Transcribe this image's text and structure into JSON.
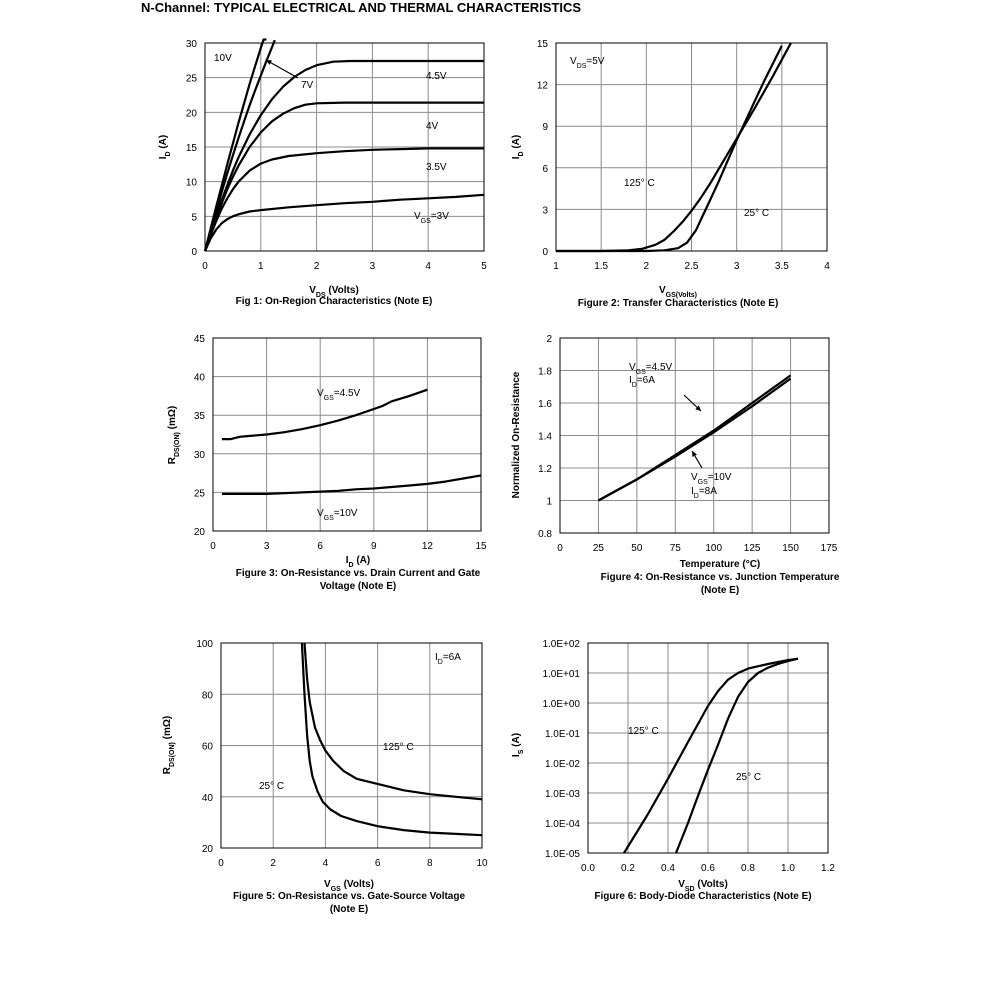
{
  "page_title": "N-Channel: TYPICAL ELECTRICAL AND THERMAL CHARACTERISTICS",
  "chart_data": [
    {
      "type": "line",
      "caption": "Fig 1: On-Region Characteristics (Note E)",
      "xlabel": "V_DS (Volts)",
      "ylabel": "I_D (A)",
      "xlim": [
        0,
        5
      ],
      "ylim": [
        0,
        30
      ],
      "xticks": [
        "0",
        "1",
        "2",
        "3",
        "4",
        "5"
      ],
      "yticks": [
        "0",
        "5",
        "10",
        "15",
        "20",
        "25",
        "30"
      ],
      "grid": true,
      "series": [
        {
          "name": "10V",
          "x": [
            0,
            0.1,
            0.2,
            0.3,
            0.4,
            0.5,
            0.6,
            0.7,
            0.8,
            0.9,
            1.0,
            1.05,
            1.1
          ],
          "y": [
            0,
            3.2,
            6.4,
            9.4,
            12.5,
            15.5,
            18.5,
            21.3,
            24.1,
            26.7,
            29.3,
            30.5,
            30.5
          ]
        },
        {
          "name": "7V",
          "x": [
            0,
            0.1,
            0.2,
            0.3,
            0.4,
            0.5,
            0.6,
            0.7,
            0.8,
            0.9,
            1.0,
            1.1,
            1.2,
            1.25
          ],
          "y": [
            0,
            2.9,
            5.7,
            8.5,
            11.2,
            13.8,
            16.3,
            18.7,
            21,
            23.2,
            25.3,
            27.4,
            29.4,
            30.4
          ]
        },
        {
          "name": "4.5V",
          "x": [
            0,
            0.1,
            0.2,
            0.3,
            0.4,
            0.5,
            0.6,
            0.8,
            1.0,
            1.2,
            1.4,
            1.6,
            1.8,
            2.0,
            2.3,
            2.6,
            3,
            3.5,
            4,
            4.5,
            5
          ],
          "y": [
            0,
            2.5,
            5,
            7.3,
            9.5,
            11.6,
            13.5,
            16.8,
            19.6,
            21.9,
            23.7,
            25.1,
            26.1,
            26.8,
            27.3,
            27.4,
            27.4,
            27.4,
            27.4,
            27.4,
            27.4
          ]
        },
        {
          "name": "4V",
          "x": [
            0,
            0.1,
            0.2,
            0.3,
            0.4,
            0.5,
            0.6,
            0.8,
            1.0,
            1.2,
            1.4,
            1.6,
            1.8,
            2.0,
            2.5,
            3,
            3.5,
            4,
            4.5,
            5
          ],
          "y": [
            0,
            2.4,
            4.7,
            6.9,
            8.9,
            10.7,
            12.3,
            15,
            17.1,
            18.7,
            19.8,
            20.6,
            21.1,
            21.3,
            21.4,
            21.4,
            21.4,
            21.4,
            21.4,
            21.4
          ]
        },
        {
          "name": "3.5V",
          "x": [
            0,
            0.1,
            0.2,
            0.3,
            0.4,
            0.5,
            0.6,
            0.8,
            1.0,
            1.2,
            1.5,
            2.0,
            2.5,
            3,
            3.5,
            4,
            4.5,
            5
          ],
          "y": [
            0,
            2.3,
            4.3,
            6.1,
            7.6,
            8.9,
            10,
            11.6,
            12.6,
            13.2,
            13.7,
            14.1,
            14.4,
            14.6,
            14.7,
            14.8,
            14.8,
            14.8
          ]
        },
        {
          "name": "VGS=3V",
          "x": [
            0,
            0.1,
            0.2,
            0.3,
            0.4,
            0.5,
            0.6,
            0.8,
            1.0,
            1.5,
            2.0,
            2.5,
            3,
            3.5,
            4,
            4.5,
            5
          ],
          "y": [
            0,
            1.8,
            3.1,
            4,
            4.6,
            5,
            5.3,
            5.7,
            5.9,
            6.3,
            6.6,
            6.9,
            7.1,
            7.4,
            7.6,
            7.8,
            8.1
          ]
        }
      ],
      "labels": [
        "10V",
        "7V",
        "4.5V",
        "4V",
        "3.5V",
        "V_GS=3V"
      ]
    },
    {
      "type": "line",
      "caption": "Figure 2: Transfer Characteristics (Note E)",
      "xlabel": "V_GS(Volts)",
      "ylabel": "I_D (A)",
      "xlim": [
        1,
        4
      ],
      "ylim": [
        0,
        15
      ],
      "xticks": [
        "1",
        "1.5",
        "2",
        "2.5",
        "3",
        "3.5",
        "4"
      ],
      "yticks": [
        "0",
        "3",
        "6",
        "9",
        "12",
        "15"
      ],
      "grid": true,
      "annotation": "V_DS=5V",
      "series": [
        {
          "name": "125° C",
          "x": [
            1,
            1.5,
            1.8,
            1.95,
            2.1,
            2.2,
            2.3,
            2.4,
            2.5,
            2.6,
            2.7,
            2.8,
            2.9,
            3.0,
            3.2,
            3.4,
            3.6
          ],
          "y": [
            0,
            0,
            0.05,
            0.15,
            0.45,
            0.8,
            1.4,
            2.1,
            2.9,
            3.8,
            4.8,
            5.9,
            7.0,
            8.1,
            10.3,
            12.6,
            15
          ]
        },
        {
          "name": "25° C",
          "x": [
            1,
            1.5,
            2.0,
            2.2,
            2.35,
            2.45,
            2.55,
            2.6,
            2.7,
            2.8,
            2.9,
            3.0,
            3.1,
            3.2,
            3.3,
            3.4,
            3.5
          ],
          "y": [
            0,
            0,
            0,
            0.05,
            0.2,
            0.6,
            1.5,
            2.2,
            3.6,
            5.0,
            6.5,
            8.0,
            9.4,
            10.8,
            12.2,
            13.5,
            14.8
          ]
        }
      ]
    },
    {
      "type": "line",
      "caption": "Figure 3: On-Resistance vs. Drain Current and Gate Voltage (Note E)",
      "xlabel": "I_D (A)",
      "ylabel": "R_DS(ON) (mΩ)",
      "xlim": [
        0,
        15
      ],
      "ylim": [
        20,
        45
      ],
      "xticks": [
        "0",
        "3",
        "6",
        "9",
        "12",
        "15"
      ],
      "yticks": [
        "20",
        "25",
        "30",
        "35",
        "40",
        "45"
      ],
      "grid": true,
      "series": [
        {
          "name": "V_GS=4.5V",
          "x": [
            0.5,
            1,
            1.5,
            2,
            3,
            4,
            5,
            6,
            7,
            8,
            9,
            9.5,
            10,
            11,
            12
          ],
          "y": [
            31.9,
            31.9,
            32.2,
            32.3,
            32.5,
            32.8,
            33.2,
            33.7,
            34.3,
            35,
            35.8,
            36.2,
            36.8,
            37.5,
            38.3
          ]
        },
        {
          "name": "V_GS=10V",
          "x": [
            0.5,
            1,
            2,
            3,
            4,
            5,
            6,
            7,
            8,
            9,
            10,
            11,
            12,
            13,
            14,
            15
          ],
          "y": [
            24.8,
            24.8,
            24.8,
            24.8,
            24.9,
            25,
            25.1,
            25.2,
            25.4,
            25.5,
            25.7,
            25.9,
            26.1,
            26.4,
            26.8,
            27.2
          ]
        }
      ]
    },
    {
      "type": "line",
      "caption": "Figure 4: On-Resistance vs. Junction Temperature (Note E)",
      "xlabel": "Temperature (°C)",
      "ylabel": "Normalized On-Resistance",
      "xlim": [
        0,
        175
      ],
      "ylim": [
        0.8,
        2
      ],
      "xticks": [
        "0",
        "25",
        "50",
        "75",
        "100",
        "125",
        "150",
        "175"
      ],
      "yticks": [
        "0.8",
        "1",
        "1.2",
        "1.4",
        "1.6",
        "1.8",
        "2"
      ],
      "grid": true,
      "series": [
        {
          "name": "V_GS=4.5V, I_D=6A",
          "x": [
            25,
            50,
            75,
            100,
            125,
            150
          ],
          "y": [
            1.0,
            1.13,
            1.28,
            1.43,
            1.6,
            1.77
          ]
        },
        {
          "name": "V_GS=10V, I_D=8A",
          "x": [
            25,
            50,
            75,
            100,
            125,
            150
          ],
          "y": [
            1.0,
            1.13,
            1.27,
            1.42,
            1.58,
            1.75
          ]
        }
      ]
    },
    {
      "type": "line",
      "caption": "Figure 5: On-Resistance vs. Gate-Source Voltage (Note E)",
      "xlabel": "V_GS (Volts)",
      "ylabel": "R_DS(ON) (mΩ)",
      "xlim": [
        0,
        10
      ],
      "ylim": [
        20,
        100
      ],
      "xticks": [
        "0",
        "2",
        "4",
        "6",
        "8",
        "10"
      ],
      "yticks": [
        "20",
        "40",
        "60",
        "80",
        "100"
      ],
      "grid": true,
      "annotation": "I_D=6A",
      "series": [
        {
          "name": "125° C",
          "x": [
            3.2,
            3.3,
            3.4,
            3.6,
            3.8,
            4.0,
            4.3,
            4.7,
            5.2,
            6,
            7,
            8,
            9,
            10
          ],
          "y": [
            100,
            86,
            77,
            67,
            62,
            58,
            54,
            50,
            47,
            45,
            42.5,
            41,
            40,
            39
          ]
        },
        {
          "name": "25° C",
          "x": [
            3.1,
            3.2,
            3.3,
            3.4,
            3.5,
            3.7,
            3.9,
            4.2,
            4.6,
            5.2,
            6,
            7,
            8,
            9,
            10
          ],
          "y": [
            100,
            80,
            64,
            54,
            48,
            42,
            38,
            35,
            32.5,
            30.5,
            28.5,
            27,
            26,
            25.5,
            25
          ]
        }
      ]
    },
    {
      "type": "line",
      "caption": "Figure 6: Body-Diode Characteristics (Note E)",
      "xlabel": "V_SD (Volts)",
      "ylabel": "I_S (A)",
      "xscale": "log-y",
      "xlim": [
        0,
        1.2
      ],
      "ylim": [
        1e-05,
        100
      ],
      "xticks": [
        "0.0",
        "0.2",
        "0.4",
        "0.6",
        "0.8",
        "1.0",
        "1.2"
      ],
      "yticks": [
        "1.0E-05",
        "1.0E-04",
        "1.0E-03",
        "1.0E-02",
        "1.0E-01",
        "1.0E+00",
        "1.0E+01",
        "1.0E+02"
      ],
      "grid": true,
      "series": [
        {
          "name": "125° C",
          "x": [
            0.18,
            0.3,
            0.4,
            0.5,
            0.55,
            0.6,
            0.65,
            0.7,
            0.75,
            0.8,
            0.9,
            1.0,
            1.05
          ],
          "y": [
            1e-05,
            0.0002,
            0.003,
            0.05,
            0.2,
            0.8,
            2.5,
            6,
            10,
            14,
            20,
            27,
            30
          ]
        },
        {
          "name": "25° C",
          "x": [
            0.44,
            0.5,
            0.55,
            0.6,
            0.65,
            0.7,
            0.75,
            0.8,
            0.85,
            0.9,
            0.95,
            1.0,
            1.05
          ],
          "y": [
            1e-05,
            0.0001,
            0.0008,
            0.006,
            0.04,
            0.3,
            1.6,
            5,
            10,
            15,
            20,
            25,
            30
          ]
        }
      ]
    }
  ]
}
